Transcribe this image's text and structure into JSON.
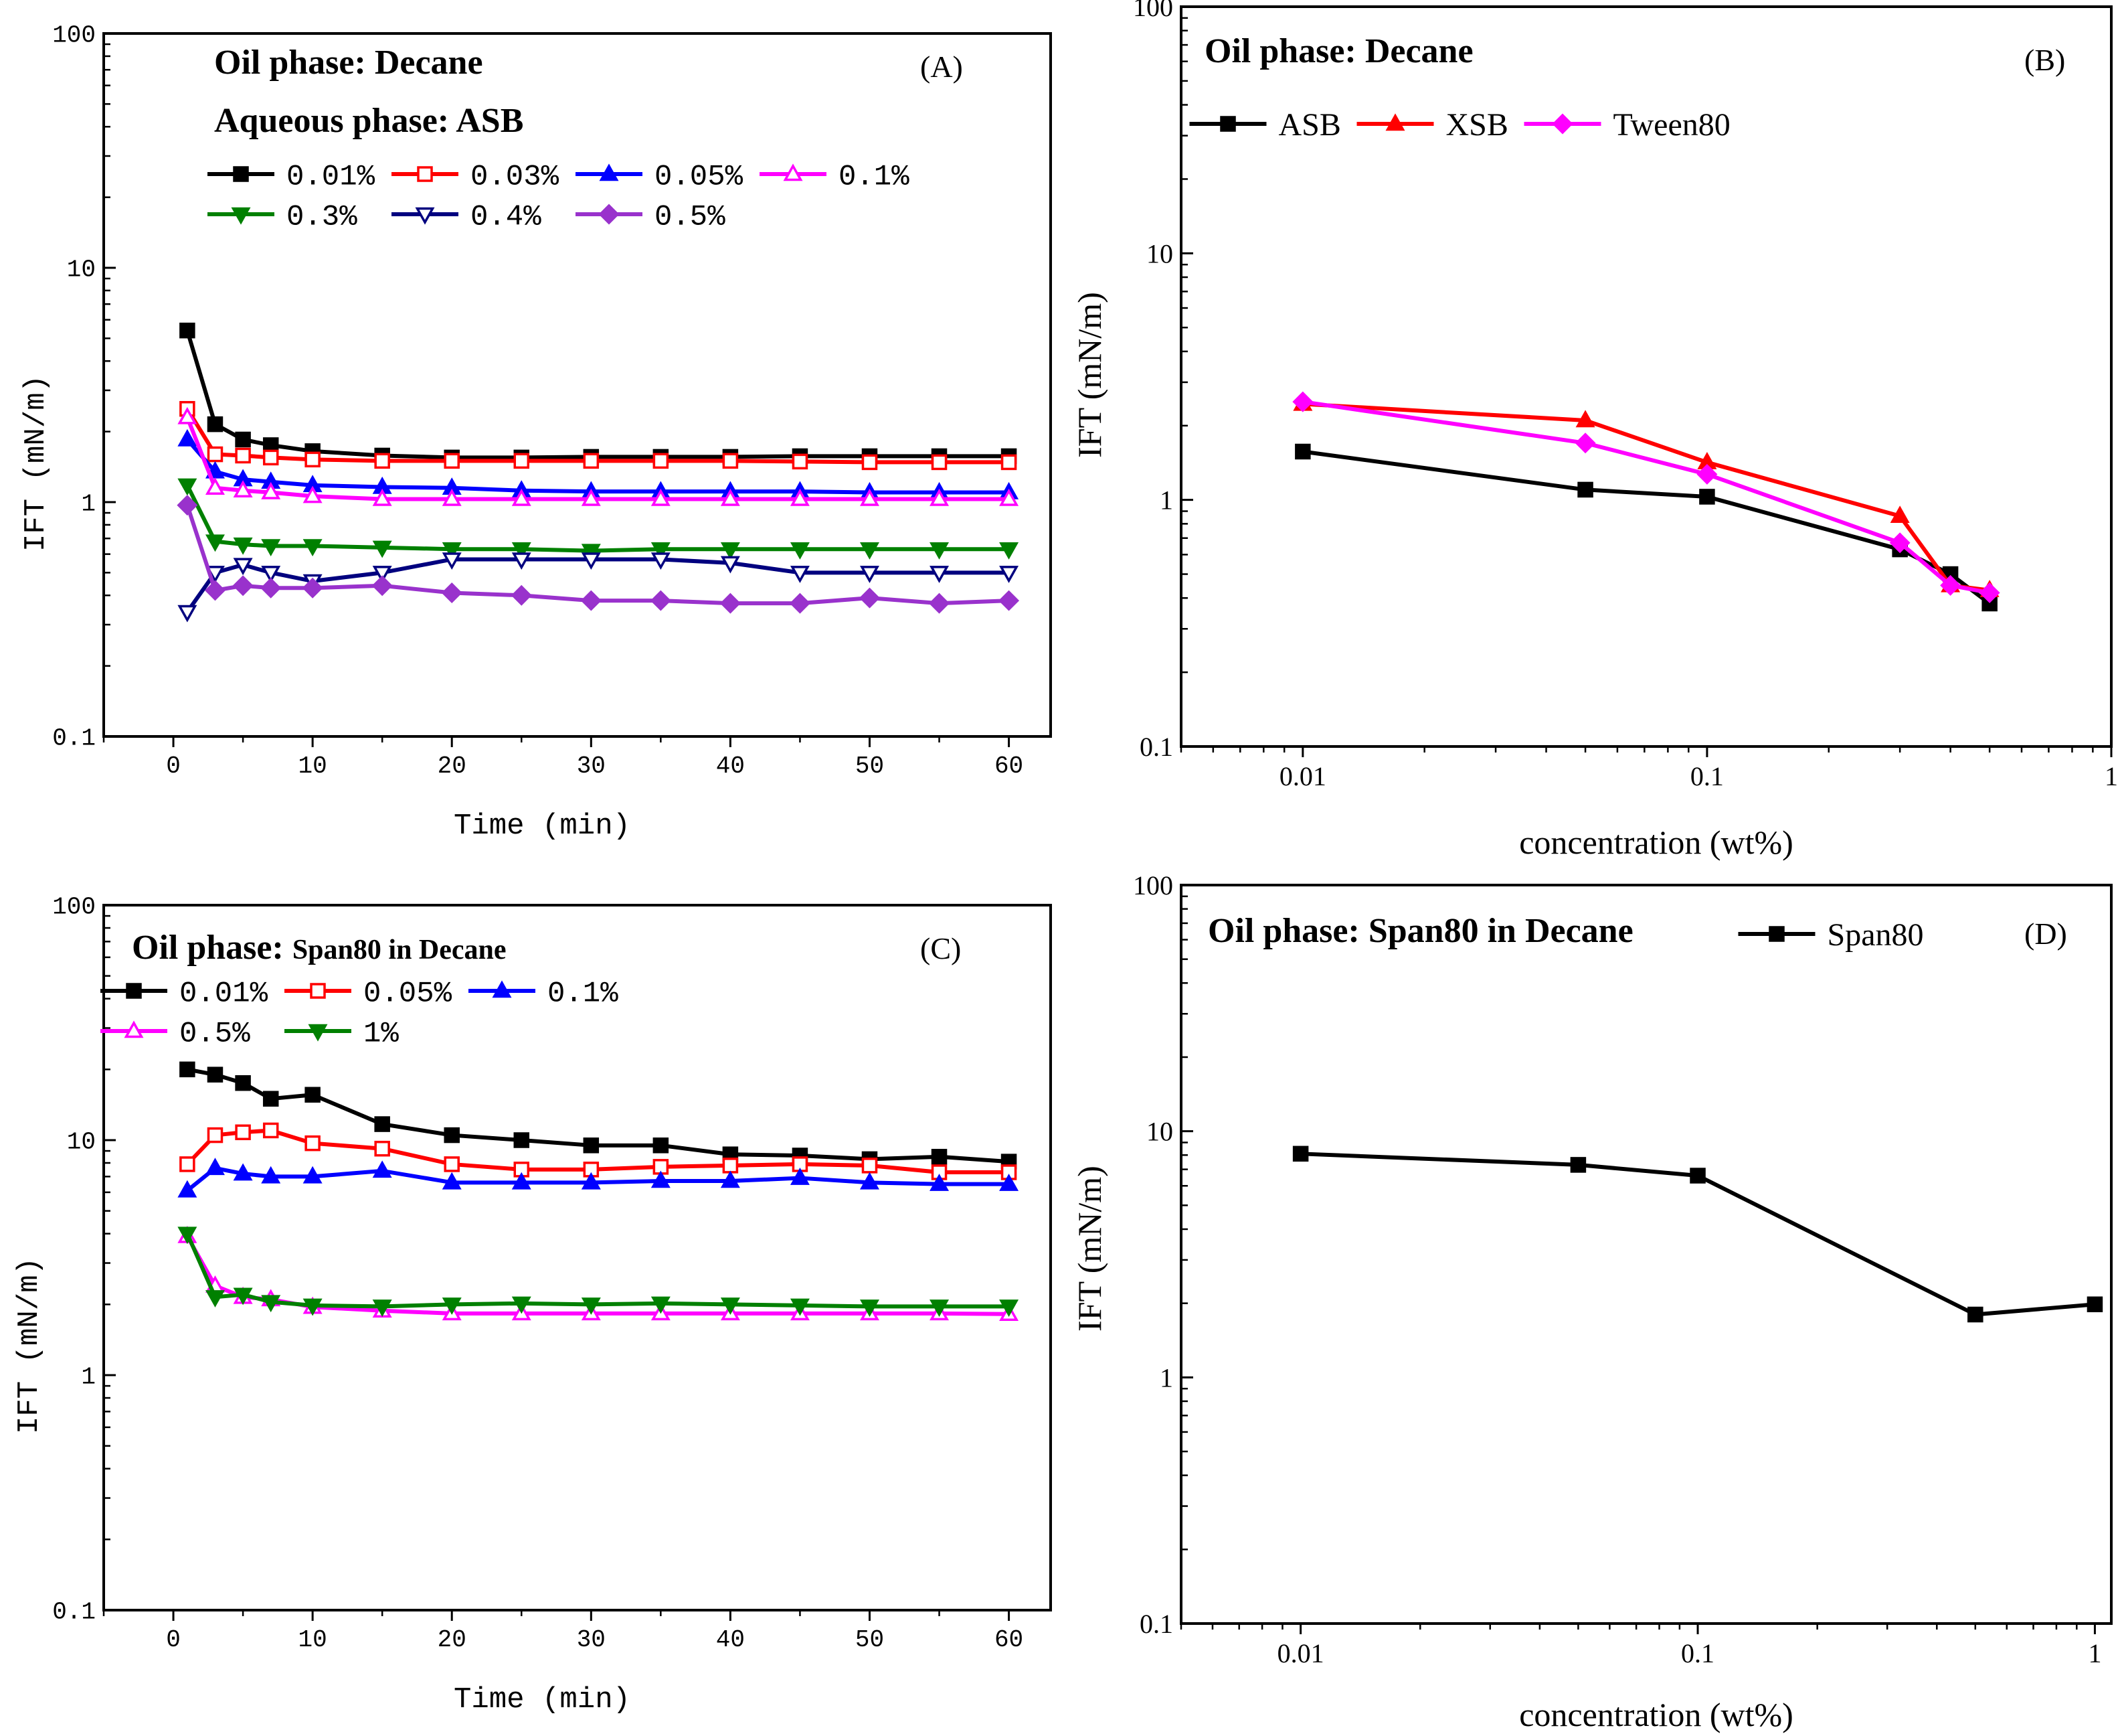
{
  "colors": {
    "black": "#000000",
    "red": "#ff0000",
    "blue": "#0000ff",
    "magenta": "#ff00ff",
    "green": "#008000",
    "navy": "#00007f",
    "purple": "#9932cc"
  },
  "chart_data": [
    {
      "id": "A",
      "type": "line",
      "panel_label": "(A)",
      "title_lines": [
        "Oil phase: Decane",
        "Aqueous phase: ASB"
      ],
      "xlabel": "Time (min)",
      "ylabel": "IFT (mN/m)",
      "xscale": "linear",
      "yscale": "log",
      "xlim": [
        -5,
        63
      ],
      "ylim": [
        0.1,
        100
      ],
      "xticks": [
        0,
        10,
        20,
        30,
        40,
        50,
        60
      ],
      "xtick_labels": [
        "0",
        "10",
        "20",
        "30",
        "40",
        "50",
        "60"
      ],
      "yticks": [
        0.1,
        1,
        10,
        100
      ],
      "ytick_labels": [
        "0.1",
        "1",
        "10",
        "100"
      ],
      "legend_placement": "top",
      "x": [
        1,
        3,
        5,
        7,
        10,
        15,
        20,
        25,
        30,
        35,
        40,
        45,
        50,
        55,
        60
      ],
      "series": [
        {
          "name": "0.01%",
          "color": "#000000",
          "marker": "square-filled",
          "values": [
            5.4,
            2.15,
            1.85,
            1.75,
            1.65,
            1.58,
            1.55,
            1.55,
            1.56,
            1.56,
            1.56,
            1.57,
            1.57,
            1.57,
            1.57
          ]
        },
        {
          "name": "0.03%",
          "color": "#ff0000",
          "marker": "square-open",
          "values": [
            2.5,
            1.6,
            1.58,
            1.55,
            1.52,
            1.5,
            1.5,
            1.5,
            1.5,
            1.5,
            1.5,
            1.49,
            1.48,
            1.48,
            1.48
          ]
        },
        {
          "name": "0.05%",
          "color": "#0000ff",
          "marker": "triangle-up-filled",
          "values": [
            1.85,
            1.35,
            1.25,
            1.22,
            1.18,
            1.16,
            1.15,
            1.12,
            1.11,
            1.11,
            1.11,
            1.11,
            1.1,
            1.1,
            1.1
          ]
        },
        {
          "name": "0.1%",
          "color": "#ff00ff",
          "marker": "triangle-up-open",
          "values": [
            2.3,
            1.15,
            1.12,
            1.1,
            1.06,
            1.03,
            1.03,
            1.03,
            1.03,
            1.03,
            1.03,
            1.03,
            1.03,
            1.03,
            1.03
          ]
        },
        {
          "name": "0.3%",
          "color": "#008000",
          "marker": "triangle-down-filled",
          "values": [
            1.18,
            0.68,
            0.66,
            0.65,
            0.65,
            0.64,
            0.63,
            0.63,
            0.62,
            0.63,
            0.63,
            0.63,
            0.63,
            0.63,
            0.63
          ]
        },
        {
          "name": "0.4%",
          "color": "#00007f",
          "marker": "triangle-down-open",
          "values": [
            0.34,
            0.5,
            0.54,
            0.5,
            0.46,
            0.5,
            0.57,
            0.57,
            0.57,
            0.57,
            0.55,
            0.5,
            0.5,
            0.5,
            0.5
          ]
        },
        {
          "name": "0.5%",
          "color": "#9932cc",
          "marker": "diamond-filled",
          "values": [
            0.97,
            0.42,
            0.44,
            0.43,
            0.43,
            0.44,
            0.41,
            0.4,
            0.38,
            0.38,
            0.37,
            0.37,
            0.39,
            0.37,
            0.38
          ]
        }
      ]
    },
    {
      "id": "B",
      "type": "line",
      "panel_label": "(B)",
      "title_lines": [
        "Oil phase: Decane"
      ],
      "xlabel": "concentration (wt%)",
      "ylabel": "IFT (mN/m)",
      "xscale": "log",
      "yscale": "log",
      "xlim": [
        0.005,
        1
      ],
      "ylim": [
        0.1,
        100
      ],
      "xticks": [
        0.01,
        0.1,
        1
      ],
      "xtick_labels": [
        "0.01",
        "0.1",
        "1"
      ],
      "yticks": [
        0.1,
        1,
        10,
        100
      ],
      "ytick_labels": [
        "0.1",
        "1",
        "10",
        "100"
      ],
      "legend_placement": "top-left",
      "series": [
        {
          "name": "ASB",
          "color": "#000000",
          "marker": "square-filled",
          "x": [
            0.01,
            0.05,
            0.1,
            0.3,
            0.4,
            0.5
          ],
          "values": [
            1.57,
            1.1,
            1.03,
            0.63,
            0.5,
            0.38
          ]
        },
        {
          "name": "XSB",
          "color": "#ff0000",
          "marker": "triangle-up-filled",
          "x": [
            0.01,
            0.05,
            0.1,
            0.3,
            0.4,
            0.5
          ],
          "values": [
            2.45,
            2.1,
            1.42,
            0.86,
            0.45,
            0.43
          ]
        },
        {
          "name": "Tween80",
          "color": "#ff00ff",
          "marker": "diamond-filled",
          "x": [
            0.01,
            0.05,
            0.1,
            0.3,
            0.4,
            0.5
          ],
          "values": [
            2.5,
            1.7,
            1.27,
            0.67,
            0.45,
            0.42
          ]
        }
      ]
    },
    {
      "id": "C",
      "type": "line",
      "panel_label": "(C)",
      "title_main": "Oil phase: ",
      "title_sub": "Span80 in Decane",
      "xlabel": "Time (min)",
      "ylabel": "IFT (mN/m)",
      "xscale": "linear",
      "yscale": "log",
      "xlim": [
        -5,
        63
      ],
      "ylim": [
        0.1,
        100
      ],
      "xticks": [
        0,
        10,
        20,
        30,
        40,
        50,
        60
      ],
      "xtick_labels": [
        "0",
        "10",
        "20",
        "30",
        "40",
        "50",
        "60"
      ],
      "yticks": [
        0.1,
        1,
        10,
        100
      ],
      "ytick_labels": [
        "0.1",
        "1",
        "10",
        "100"
      ],
      "legend_placement": "top-left",
      "x": [
        1,
        3,
        5,
        7,
        10,
        15,
        20,
        25,
        30,
        35,
        40,
        45,
        50,
        55,
        60
      ],
      "series": [
        {
          "name": "0.01%",
          "color": "#000000",
          "marker": "square-filled",
          "values": [
            20,
            19,
            17.5,
            15,
            15.6,
            11.7,
            10.5,
            10,
            9.5,
            9.5,
            8.7,
            8.6,
            8.3,
            8.5,
            8.1
          ]
        },
        {
          "name": "0.05%",
          "color": "#ff0000",
          "marker": "square-open",
          "values": [
            7.9,
            10.5,
            10.8,
            11,
            9.7,
            9.2,
            7.9,
            7.5,
            7.5,
            7.7,
            7.8,
            7.9,
            7.8,
            7.3,
            7.3
          ]
        },
        {
          "name": "0.1%",
          "color": "#0000ff",
          "marker": "triangle-up-filled",
          "values": [
            6.1,
            7.6,
            7.2,
            7.0,
            7.0,
            7.4,
            6.6,
            6.6,
            6.6,
            6.7,
            6.7,
            6.9,
            6.6,
            6.5,
            6.5
          ]
        },
        {
          "name": "0.5%",
          "color": "#ff00ff",
          "marker": "triangle-up-open",
          "values": [
            3.9,
            2.4,
            2.15,
            2.1,
            1.95,
            1.88,
            1.83,
            1.83,
            1.83,
            1.83,
            1.83,
            1.83,
            1.83,
            1.83,
            1.82
          ]
        },
        {
          "name": "1%",
          "color": "#008000",
          "marker": "triangle-down-filled",
          "values": [
            4.0,
            2.15,
            2.2,
            2.05,
            1.98,
            1.96,
            2.0,
            2.02,
            2.0,
            2.02,
            2.0,
            1.98,
            1.96,
            1.96,
            1.96
          ]
        }
      ]
    },
    {
      "id": "D",
      "type": "line",
      "panel_label": "(D)",
      "title_lines": [
        "Oil phase: Span80 in Decane"
      ],
      "xlabel": "concentration (wt%)",
      "ylabel": "IFT (mN/m)",
      "xscale": "log",
      "yscale": "log",
      "xlim": [
        0.005,
        1.1
      ],
      "ylim": [
        0.1,
        100
      ],
      "xticks": [
        0.01,
        0.1,
        1
      ],
      "xtick_labels": [
        "0.01",
        "0.1",
        "1"
      ],
      "yticks": [
        0.1,
        1,
        10,
        100
      ],
      "ytick_labels": [
        "0.1",
        "1",
        "10",
        "100"
      ],
      "legend_placement": "top-right",
      "series": [
        {
          "name": "Span80",
          "color": "#000000",
          "marker": "square-filled",
          "x": [
            0.01,
            0.05,
            0.1,
            0.5,
            1
          ],
          "values": [
            8.1,
            7.3,
            6.6,
            1.8,
            1.98
          ]
        }
      ]
    }
  ]
}
